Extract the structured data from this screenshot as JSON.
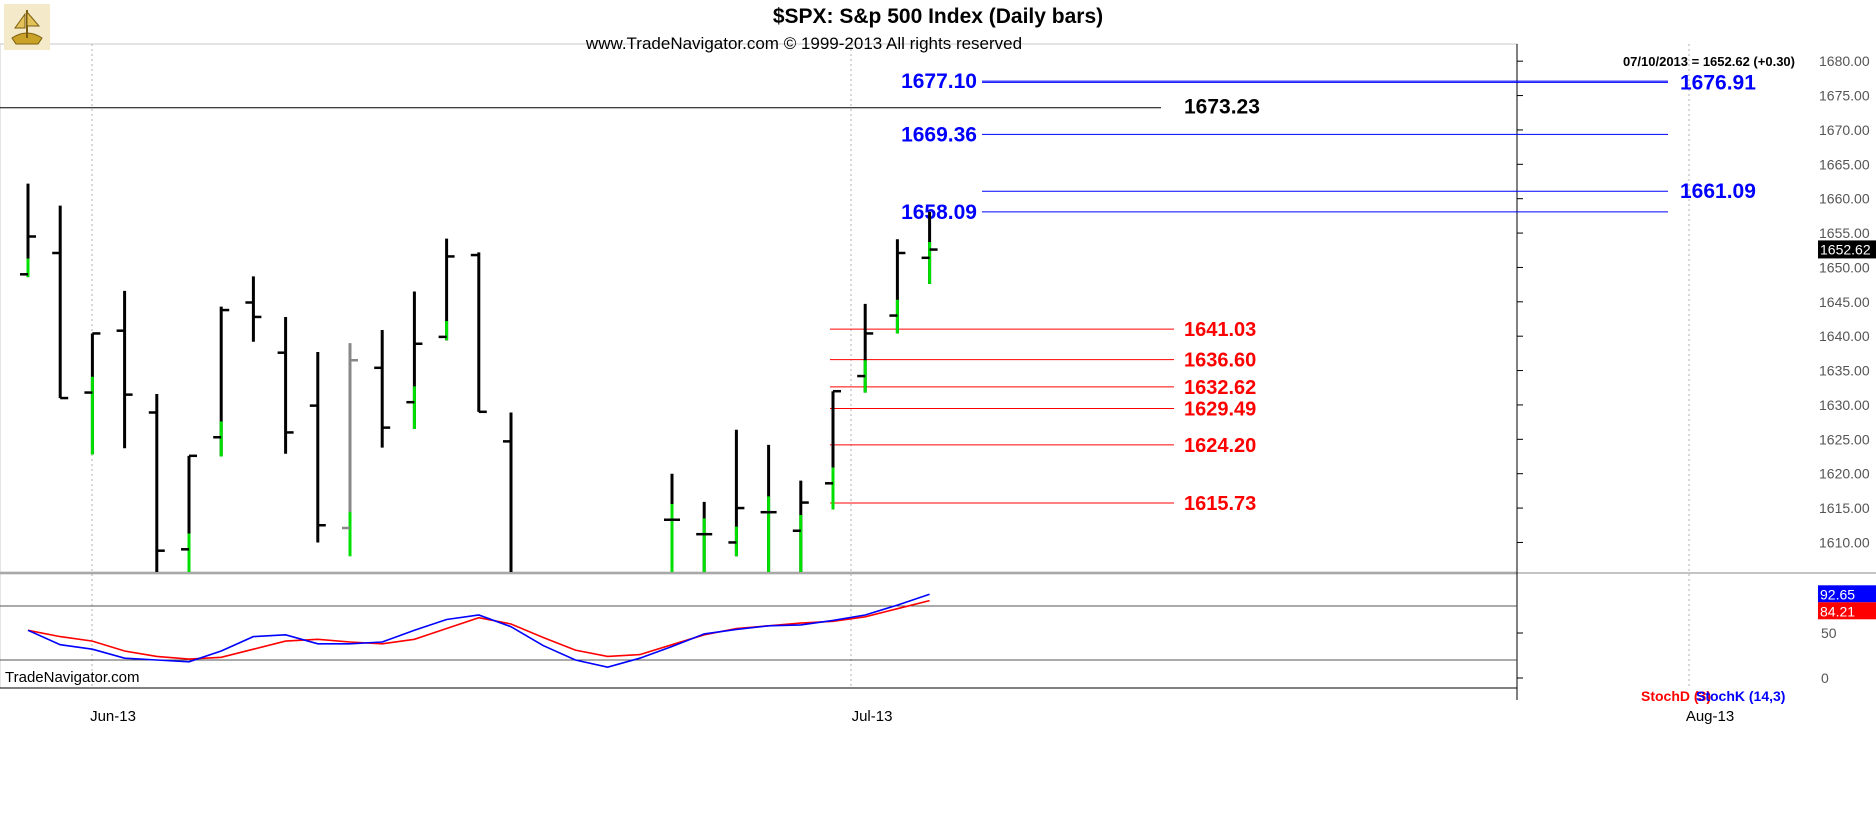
{
  "header": {
    "title": "$SPX:  S&p 500 Index  (Daily bars)",
    "subtitle": "www.TradeNavigator.com © 1999-2013 All rights reserved"
  },
  "info": {
    "last_price_line": "07/10/2013 = 1652.62 (+0.30)",
    "last_price_tag": "1652.62",
    "watermark": "TradeNavigator.com"
  },
  "colors": {
    "up_tick": "#00e000",
    "bar": "#000000",
    "gray_bar": "#888888",
    "projection_blue": "#0000ff",
    "retrace_red": "#ff0000",
    "stoch_d": "#ff0000",
    "stoch_k": "#0000ff"
  },
  "chart_data": [
    {
      "type": "ohlc",
      "name": "price",
      "x_labels": [
        "Jun-13",
        "Jul-13",
        "Aug-13"
      ],
      "y_ticks": [
        "1610.00",
        "1615.00",
        "1620.00",
        "1625.00",
        "1630.00",
        "1635.00",
        "1640.00",
        "1645.00",
        "1650.00",
        "1655.00",
        "1660.00",
        "1665.00",
        "1670.00",
        "1675.00",
        "1680.00"
      ],
      "ylim": [
        1605.7,
        1682.5
      ],
      "bars": [
        {
          "o": 1649.0,
          "h": 1662.2,
          "l": 1648.6,
          "c": 1654.5
        },
        {
          "o": 1652.1,
          "h": 1659.0,
          "l": 1631.0,
          "c": 1631.0
        },
        {
          "o": 1631.8,
          "h": 1640.4,
          "l": 1622.8,
          "c": 1640.4
        },
        {
          "o": 1640.8,
          "h": 1646.6,
          "l": 1623.7,
          "c": 1631.5
        },
        {
          "o": 1628.9,
          "h": 1631.6,
          "l": 1604.0,
          "c": 1608.8
        },
        {
          "o": 1609.0,
          "h": 1622.6,
          "l": 1604.0,
          "c": 1622.6
        },
        {
          "o": 1625.3,
          "h": 1644.3,
          "l": 1622.5,
          "c": 1643.8
        },
        {
          "o": 1644.9,
          "h": 1648.7,
          "l": 1639.2,
          "c": 1642.8
        },
        {
          "o": 1637.6,
          "h": 1642.8,
          "l": 1622.9,
          "c": 1626.0
        },
        {
          "o": 1629.9,
          "h": 1637.7,
          "l": 1610.0,
          "c": 1612.5
        },
        {
          "o": 1612.1,
          "h": 1639.0,
          "l": 1608.0,
          "c": 1636.5,
          "gray": true
        },
        {
          "o": 1635.4,
          "h": 1640.9,
          "l": 1623.8,
          "c": 1626.7
        },
        {
          "o": 1630.4,
          "h": 1646.5,
          "l": 1626.5,
          "c": 1638.9
        },
        {
          "o": 1639.9,
          "h": 1654.2,
          "l": 1639.4,
          "c": 1651.6
        },
        {
          "o": 1651.8,
          "h": 1652.2,
          "l": 1629.0,
          "c": 1629.0
        },
        {
          "o": 1624.7,
          "h": 1628.9,
          "l": 1604.0,
          "c": 1604.5
        },
        {
          "o": null,
          "h": null,
          "l": null,
          "c": null
        },
        {
          "o": null,
          "h": null,
          "l": null,
          "c": null
        },
        {
          "o": null,
          "h": null,
          "l": null,
          "c": null
        },
        {
          "o": null,
          "h": null,
          "l": null,
          "c": null
        },
        {
          "o": 1613.3,
          "h": 1620.0,
          "l": 1604.0,
          "c": 1613.3
        },
        {
          "o": 1611.2,
          "h": 1615.9,
          "l": 1604.0,
          "c": 1611.2
        },
        {
          "o": 1610.0,
          "h": 1626.4,
          "l": 1608.0,
          "c": 1615.0
        },
        {
          "o": 1614.4,
          "h": 1624.2,
          "l": 1604.0,
          "c": 1614.4
        },
        {
          "o": 1611.7,
          "h": 1619.0,
          "l": 1604.0,
          "c": 1615.8
        },
        {
          "o": 1618.6,
          "h": 1632.0,
          "l": 1614.8,
          "c": 1632.0
        },
        {
          "o": 1634.2,
          "h": 1644.7,
          "l": 1631.8,
          "c": 1640.4
        },
        {
          "o": 1643.0,
          "h": 1654.1,
          "l": 1640.4,
          "c": 1652.1
        },
        {
          "o": 1651.4,
          "h": 1658.1,
          "l": 1647.6,
          "c": 1652.6
        }
      ],
      "levels": [
        {
          "label": "1677.10",
          "value": 1677.1,
          "color": "blue",
          "side": "left"
        },
        {
          "label": "1676.91",
          "value": 1676.91,
          "color": "blue",
          "side": "right"
        },
        {
          "label": "1673.23",
          "value": 1673.23,
          "color": "black",
          "side": "full"
        },
        {
          "label": "1669.36",
          "value": 1669.36,
          "color": "blue",
          "side": "left"
        },
        {
          "label": "1661.09",
          "value": 1661.09,
          "color": "blue",
          "side": "right"
        },
        {
          "label": "1658.09",
          "value": 1658.09,
          "color": "blue",
          "side": "left"
        },
        {
          "label": "1641.03",
          "value": 1641.03,
          "color": "red",
          "side": "red"
        },
        {
          "label": "1636.60",
          "value": 1636.6,
          "color": "red",
          "side": "red"
        },
        {
          "label": "1632.62",
          "value": 1632.62,
          "color": "red",
          "side": "red"
        },
        {
          "label": "1629.49",
          "value": 1629.49,
          "color": "red",
          "side": "red"
        },
        {
          "label": "1624.20",
          "value": 1624.2,
          "color": "red",
          "side": "red"
        },
        {
          "label": "1615.73",
          "value": 1615.73,
          "color": "red",
          "side": "red"
        }
      ]
    },
    {
      "type": "line",
      "name": "stochastic",
      "legend": [
        "StochD (3)",
        "StochK (14,3)"
      ],
      "y_ticks": [
        "0",
        "50"
      ],
      "ylim": [
        0,
        100
      ],
      "value_labels": [
        "92.65",
        "84.21"
      ],
      "series": [
        {
          "name": "StochD (3)",
          "values": [
            53,
            46,
            41,
            30,
            24,
            21,
            23,
            32,
            41,
            43,
            40,
            38,
            43,
            55,
            67,
            60,
            45,
            31,
            24,
            26,
            37,
            48,
            55,
            58,
            61,
            63,
            68,
            77,
            86
          ]
        },
        {
          "name": "StochK (14,3)",
          "values": [
            53,
            37,
            32,
            22,
            20,
            18,
            30,
            46,
            48,
            38,
            38,
            40,
            53,
            65,
            70,
            57,
            36,
            20,
            12,
            22,
            35,
            49,
            54,
            58,
            59,
            64,
            70,
            81,
            93
          ]
        }
      ]
    }
  ]
}
